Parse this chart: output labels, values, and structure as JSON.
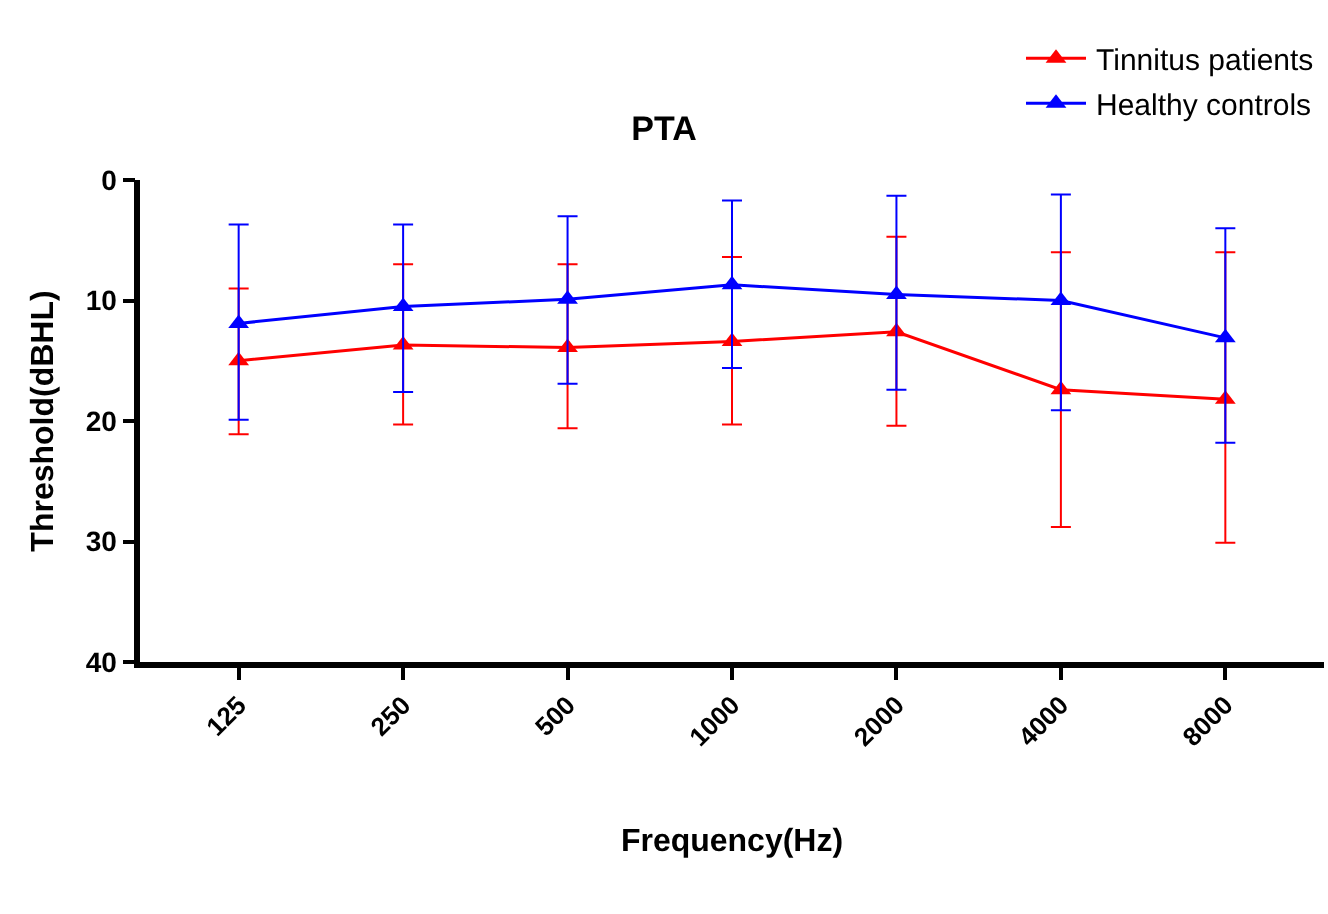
{
  "chart_data": {
    "type": "line",
    "title": "PTA",
    "xlabel": "Frequency(Hz)",
    "ylabel": "Threshold(dBHL)",
    "categories": [
      "125",
      "250",
      "500",
      "1000",
      "2000",
      "4000",
      "8000"
    ],
    "series": [
      {
        "name": "Tinnitus patients",
        "color": "#ff0000",
        "values": [
          15.0,
          13.7,
          13.9,
          13.4,
          12.6,
          17.4,
          18.2
        ],
        "errors": [
          [
            9.0,
            21.1
          ],
          [
            7.0,
            20.3
          ],
          [
            7.0,
            20.6
          ],
          [
            6.4,
            20.3
          ],
          [
            4.7,
            20.4
          ],
          [
            6.0,
            28.8
          ],
          [
            6.0,
            30.1
          ]
        ]
      },
      {
        "name": "Healthy controls",
        "color": "#0000ff",
        "values": [
          11.9,
          10.5,
          9.9,
          8.7,
          9.5,
          10.0,
          13.1
        ],
        "errors": [
          [
            3.7,
            19.9
          ],
          [
            3.7,
            17.6
          ],
          [
            3.0,
            16.9
          ],
          [
            1.7,
            15.6
          ],
          [
            1.3,
            17.4
          ],
          [
            1.2,
            19.1
          ],
          [
            4.0,
            21.8
          ]
        ]
      }
    ],
    "ylim": [
      40,
      0
    ],
    "yticks": [
      0,
      10,
      20,
      30,
      40
    ],
    "grid": false,
    "legend": "top right",
    "marker": "triangle",
    "line_style": "solid"
  }
}
